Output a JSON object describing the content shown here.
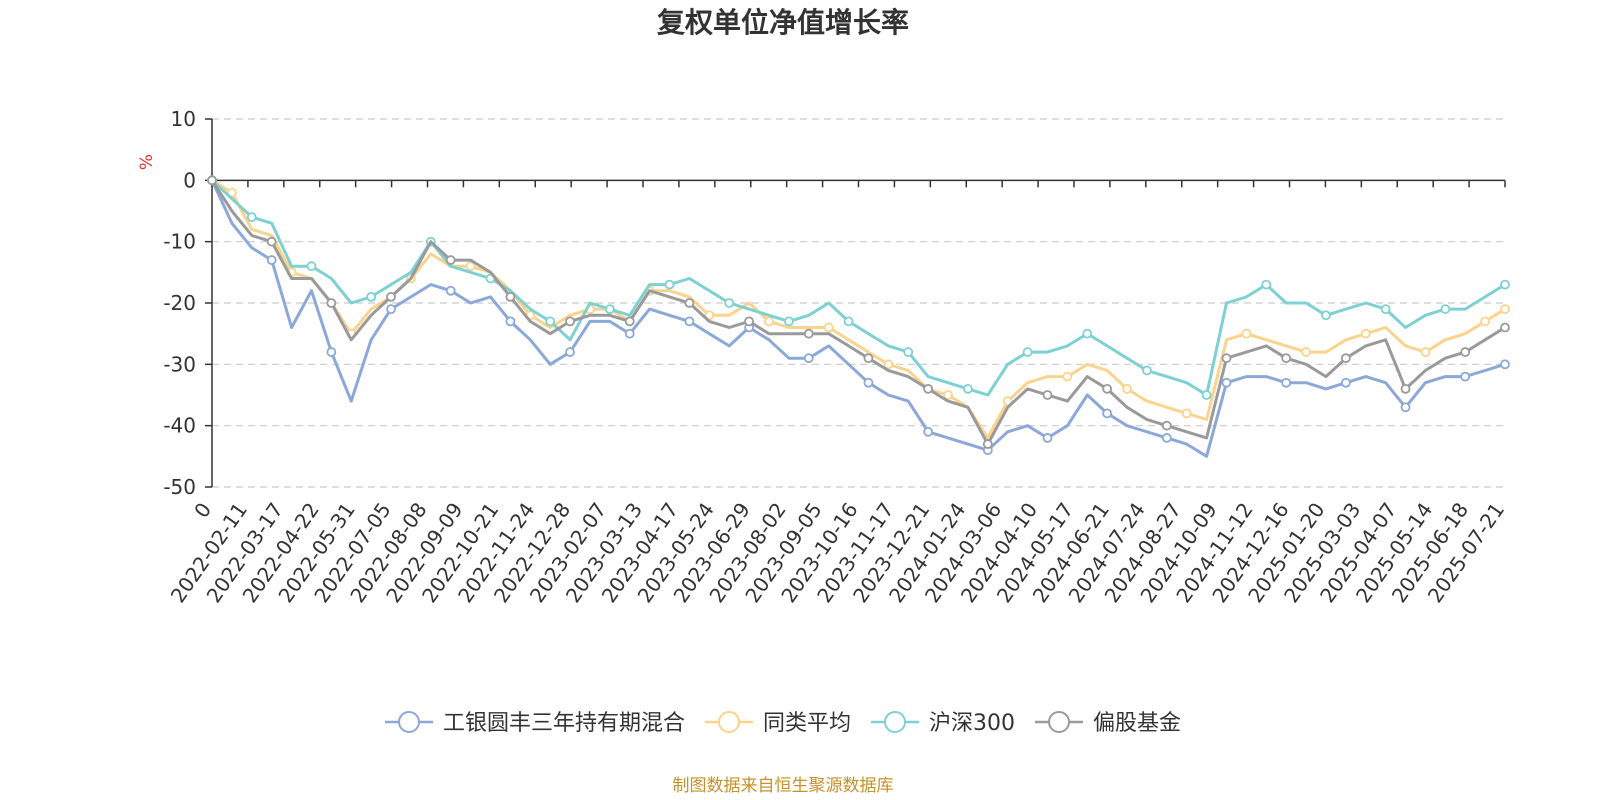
{
  "chart_data": {
    "type": "line",
    "title": "复权单位净值增长率",
    "ylabel": "%",
    "ylim": [
      -50,
      10
    ],
    "yticks": [
      10,
      0,
      -10,
      -20,
      -30,
      -40,
      -50
    ],
    "grid": true,
    "legend_position": "bottom",
    "x_tick_labels": [
      "0",
      "2022-02-11",
      "2022-03-17",
      "2022-04-22",
      "2022-05-31",
      "2022-07-05",
      "2022-08-08",
      "2022-09-09",
      "2022-10-21",
      "2022-11-24",
      "2022-12-28",
      "2023-02-07",
      "2023-03-13",
      "2023-04-17",
      "2023-05-24",
      "2023-06-29",
      "2023-08-02",
      "2023-09-05",
      "2023-10-16",
      "2023-11-17",
      "2023-12-21",
      "2024-01-24",
      "2024-03-06",
      "2024-04-10",
      "2024-05-17",
      "2024-06-21",
      "2024-07-24",
      "2024-08-27",
      "2024-10-09",
      "2024-11-12",
      "2024-12-16",
      "2025-01-20",
      "2025-03-03",
      "2025-04-07",
      "2025-05-14",
      "2025-06-18",
      "2025-07-21"
    ],
    "series": [
      {
        "name": "工银圆丰三年持有期混合",
        "color": "#8ba8d8",
        "values": [
          0,
          -7,
          -11,
          -13,
          -24,
          -18,
          -28,
          -36,
          -26,
          -21,
          -19,
          -17,
          -18,
          -20,
          -19,
          -23,
          -26,
          -30,
          -28,
          -23,
          -23,
          -25,
          -21,
          -22,
          -23,
          -25,
          -27,
          -24,
          -26,
          -29,
          -29,
          -27,
          -30,
          -33,
          -35,
          -36,
          -41,
          -42,
          -43,
          -44,
          -41,
          -40,
          -42,
          -40,
          -35,
          -38,
          -40,
          -41,
          -42,
          -43,
          -45,
          -33,
          -32,
          -32,
          -33,
          -33,
          -34,
          -33,
          -32,
          -33,
          -37,
          -33,
          -32,
          -32,
          -31,
          -30
        ]
      },
      {
        "name": "同类平均",
        "color": "#fcd38c",
        "values": [
          0,
          -2,
          -8,
          -9,
          -15,
          -16,
          -20,
          -25,
          -21,
          -19,
          -16,
          -12,
          -14,
          -14,
          -15,
          -18,
          -22,
          -24,
          -22,
          -21,
          -21,
          -23,
          -18,
          -18,
          -19,
          -22,
          -22,
          -20,
          -23,
          -24,
          -24,
          -24,
          -26,
          -28,
          -30,
          -31,
          -34,
          -35,
          -37,
          -42,
          -36,
          -33,
          -32,
          -32,
          -30,
          -31,
          -34,
          -36,
          -37,
          -38,
          -39,
          -26,
          -25,
          -26,
          -27,
          -28,
          -28,
          -26,
          -25,
          -24,
          -27,
          -28,
          -26,
          -25,
          -23,
          -21
        ]
      },
      {
        "name": "沪深300",
        "color": "#7ed1d3",
        "values": [
          0,
          -3,
          -6,
          -7,
          -14,
          -14,
          -16,
          -20,
          -19,
          -17,
          -15,
          -10,
          -14,
          -15,
          -16,
          -18,
          -21,
          -23,
          -26,
          -20,
          -21,
          -22,
          -17,
          -17,
          -16,
          -18,
          -20,
          -21,
          -22,
          -23,
          -22,
          -20,
          -23,
          -25,
          -27,
          -28,
          -32,
          -33,
          -34,
          -35,
          -30,
          -28,
          -28,
          -27,
          -25,
          -27,
          -29,
          -31,
          -32,
          -33,
          -35,
          -20,
          -19,
          -17,
          -20,
          -20,
          -22,
          -21,
          -20,
          -21,
          -24,
          -22,
          -21,
          -21,
          -19,
          -17
        ]
      },
      {
        "name": "偏股基金",
        "color": "#9a9a9a",
        "values": [
          0,
          -5,
          -9,
          -10,
          -16,
          -16,
          -20,
          -26,
          -22,
          -19,
          -16,
          -10,
          -13,
          -13,
          -15,
          -19,
          -23,
          -25,
          -23,
          -22,
          -22,
          -23,
          -18,
          -19,
          -20,
          -23,
          -24,
          -23,
          -25,
          -25,
          -25,
          -25,
          -27,
          -29,
          -31,
          -32,
          -34,
          -36,
          -37,
          -43,
          -37,
          -34,
          -35,
          -36,
          -32,
          -34,
          -37,
          -39,
          -40,
          -41,
          -42,
          -29,
          -28,
          -27,
          -29,
          -30,
          -32,
          -29,
          -27,
          -26,
          -34,
          -31,
          -29,
          -28,
          -26,
          -24
        ]
      }
    ]
  },
  "footer": {
    "source": "制图数据来自恒生聚源数据库"
  }
}
